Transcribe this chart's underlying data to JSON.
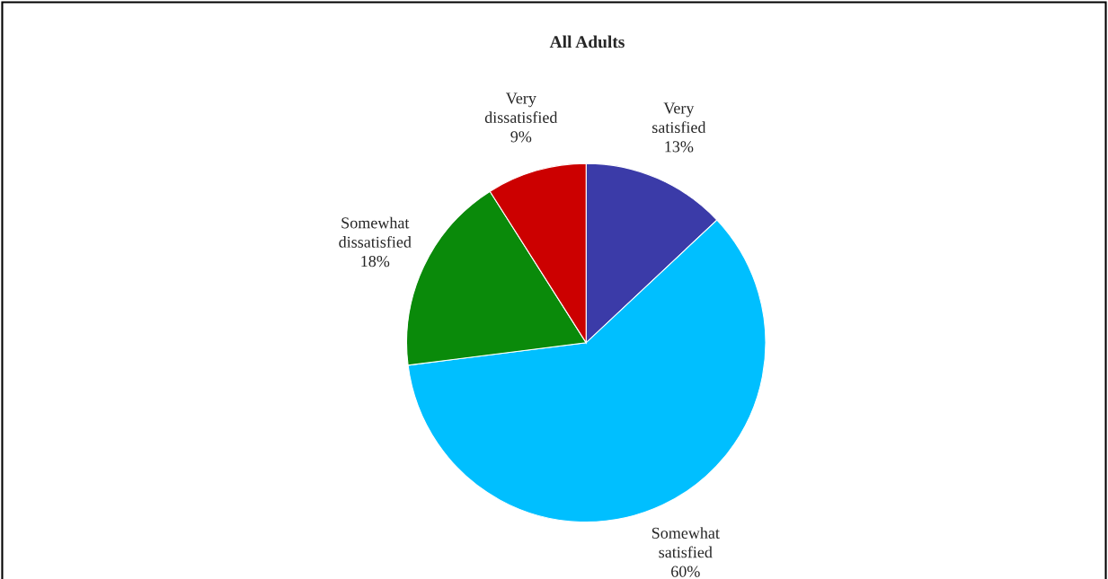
{
  "chart_data": {
    "type": "pie",
    "title": "All Adults",
    "categories": [
      "Very satisfied",
      "Somewhat satisfied",
      "Somewhat dissatisfied",
      "Very dissatisfied"
    ],
    "values": [
      13,
      60,
      18,
      9
    ],
    "colors": [
      "#3b3ba8",
      "#00bfff",
      "#0a8a0a",
      "#cc0000"
    ],
    "value_labels": [
      "13%",
      "60%",
      "18%",
      "9%"
    ]
  }
}
